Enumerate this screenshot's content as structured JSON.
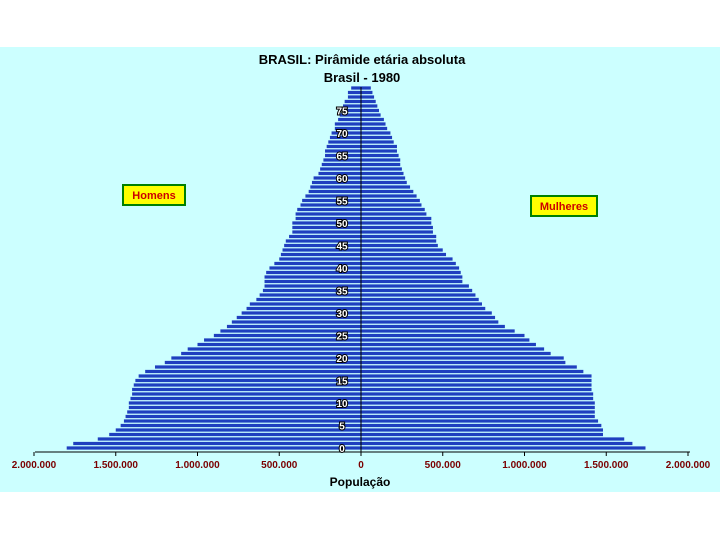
{
  "chart_data": {
    "type": "bar",
    "orientation": "horizontal-pyramid",
    "title": "BRASIL: Pirâmide etária absoluta",
    "subtitle": "Brasil - 1980",
    "xlabel": "População",
    "x_ticks": [
      {
        "value": -2000000,
        "label": "2.000.000"
      },
      {
        "value": -1500000,
        "label": "1.500.000"
      },
      {
        "value": -1000000,
        "label": "1.000.000"
      },
      {
        "value": -500000,
        "label": "500.000"
      },
      {
        "value": 0,
        "label": "0"
      },
      {
        "value": 500000,
        "label": "500.000"
      },
      {
        "value": 1000000,
        "label": "1.000.000"
      },
      {
        "value": 1500000,
        "label": "1.500.000"
      },
      {
        "value": 2000000,
        "label": "2.000.000"
      }
    ],
    "xlim": [
      -2000000,
      2000000
    ],
    "age_labels": [
      "0",
      "5",
      "10",
      "15",
      "20",
      "25",
      "30",
      "35",
      "40",
      "45",
      "50",
      "55",
      "60",
      "65",
      "70",
      "75"
    ],
    "ylim": [
      0,
      80
    ],
    "legend": {
      "left": "Homens",
      "right": "Mulheres"
    },
    "bar_color": "#1f3fbf",
    "ages": [
      0,
      1,
      2,
      3,
      4,
      5,
      6,
      7,
      8,
      9,
      10,
      11,
      12,
      13,
      14,
      15,
      16,
      17,
      18,
      19,
      20,
      21,
      22,
      23,
      24,
      25,
      26,
      27,
      28,
      29,
      30,
      31,
      32,
      33,
      34,
      35,
      36,
      37,
      38,
      39,
      40,
      41,
      42,
      43,
      44,
      45,
      46,
      47,
      48,
      49,
      50,
      51,
      52,
      53,
      54,
      55,
      56,
      57,
      58,
      59,
      60,
      61,
      62,
      63,
      64,
      65,
      66,
      67,
      68,
      69,
      70,
      71,
      72,
      73,
      74,
      75,
      76,
      77,
      78,
      79,
      80
    ],
    "series": [
      {
        "name": "Homens",
        "values": [
          1800000,
          1760000,
          1610000,
          1540000,
          1500000,
          1470000,
          1450000,
          1440000,
          1430000,
          1420000,
          1420000,
          1410000,
          1400000,
          1400000,
          1390000,
          1380000,
          1360000,
          1320000,
          1260000,
          1200000,
          1160000,
          1100000,
          1060000,
          1000000,
          960000,
          900000,
          860000,
          820000,
          790000,
          760000,
          730000,
          700000,
          680000,
          640000,
          620000,
          600000,
          590000,
          590000,
          590000,
          580000,
          560000,
          530000,
          500000,
          490000,
          480000,
          470000,
          460000,
          440000,
          420000,
          420000,
          420000,
          400000,
          400000,
          390000,
          370000,
          360000,
          340000,
          320000,
          310000,
          300000,
          290000,
          260000,
          250000,
          240000,
          230000,
          220000,
          220000,
          210000,
          200000,
          190000,
          180000,
          160000,
          160000,
          140000,
          130000,
          110000,
          110000,
          100000,
          80000,
          80000,
          60000
        ]
      },
      {
        "name": "Mulheres",
        "values": [
          1740000,
          1660000,
          1610000,
          1480000,
          1480000,
          1470000,
          1450000,
          1430000,
          1430000,
          1430000,
          1430000,
          1420000,
          1420000,
          1410000,
          1410000,
          1410000,
          1410000,
          1360000,
          1320000,
          1250000,
          1240000,
          1160000,
          1120000,
          1070000,
          1030000,
          1000000,
          940000,
          880000,
          840000,
          820000,
          800000,
          760000,
          740000,
          720000,
          700000,
          680000,
          660000,
          620000,
          620000,
          610000,
          600000,
          580000,
          560000,
          520000,
          500000,
          470000,
          460000,
          460000,
          440000,
          440000,
          430000,
          430000,
          400000,
          390000,
          370000,
          360000,
          340000,
          320000,
          300000,
          280000,
          270000,
          260000,
          250000,
          240000,
          240000,
          230000,
          220000,
          220000,
          200000,
          190000,
          180000,
          160000,
          150000,
          140000,
          120000,
          110000,
          100000,
          90000,
          80000,
          70000,
          60000
        ]
      }
    ]
  }
}
